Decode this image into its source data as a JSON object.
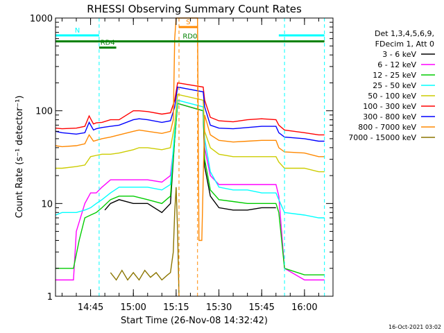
{
  "chart_data": {
    "type": "line",
    "title": "RHESSI Observing Summary Count Rates",
    "xlabel": "Start Time (26-Nov-08 14:32:42)",
    "ylabel": "Count Rate (s⁻¹ detector⁻¹)",
    "y_scale": "log",
    "ylim": [
      1,
      1000
    ],
    "y_ticks": [
      "1",
      "10",
      "100",
      "1000"
    ],
    "xlim": [
      "14:32:42",
      "16:10:00"
    ],
    "x_ticks": [
      "14:45",
      "15:00",
      "15:15",
      "15:30",
      "15:45",
      "16:00"
    ],
    "timestamp": "16-Oct-2021 03:02",
    "legend_header": [
      "Det 1,3,4,5,6,9,",
      "FDecim 1, Att 0"
    ],
    "series": [
      {
        "name": "3 - 6 keV",
        "color": "#000000",
        "points": [
          [
            "14:50:00",
            8.5
          ],
          [
            "14:52:00",
            10
          ],
          [
            "14:55:00",
            11
          ],
          [
            "15:00:00",
            10
          ],
          [
            "15:05:00",
            10
          ],
          [
            "15:10:00",
            8
          ],
          [
            "15:13:00",
            10
          ],
          [
            "15:14:30",
            50
          ],
          [
            "15:15:30",
            120
          ],
          [
            "15:24:30",
            100
          ],
          [
            "15:25:00",
            25
          ],
          [
            "15:27:00",
            12
          ],
          [
            "15:30:00",
            9
          ],
          [
            "15:35:00",
            8.5
          ],
          [
            "15:40:00",
            8.5
          ],
          [
            "15:45:00",
            9
          ],
          [
            "15:50:00",
            9
          ]
        ]
      },
      {
        "name": "6 - 12 keV",
        "color": "#ff00ff",
        "points": [
          [
            "14:32:42",
            1.5
          ],
          [
            "14:35:00",
            1.5
          ],
          [
            "14:39:00",
            1.5
          ],
          [
            "14:40:00",
            5
          ],
          [
            "14:43:00",
            10
          ],
          [
            "14:45:00",
            13
          ],
          [
            "14:47:00",
            13
          ],
          [
            "14:49:00",
            15
          ],
          [
            "14:52:00",
            18
          ],
          [
            "14:55:00",
            18
          ],
          [
            "15:00:00",
            18
          ],
          [
            "15:05:00",
            18
          ],
          [
            "15:10:00",
            17
          ],
          [
            "15:13:00",
            20
          ],
          [
            "15:14:30",
            50
          ],
          [
            "15:15:30",
            120
          ],
          [
            "15:24:30",
            100
          ],
          [
            "15:25:00",
            40
          ],
          [
            "15:27:00",
            20
          ],
          [
            "15:30:00",
            16
          ],
          [
            "15:35:00",
            16
          ],
          [
            "15:40:00",
            16
          ],
          [
            "15:45:00",
            16
          ],
          [
            "15:50:00",
            16
          ],
          [
            "15:51:00",
            12
          ],
          [
            "15:53:00",
            2
          ],
          [
            "16:00:00",
            1.5
          ],
          [
            "16:05:00",
            1.5
          ],
          [
            "16:07:00",
            1.5
          ]
        ]
      },
      {
        "name": "12 - 25 keV",
        "color": "#00cc00",
        "points": [
          [
            "14:32:42",
            2
          ],
          [
            "14:36:00",
            2
          ],
          [
            "14:39:00",
            2
          ],
          [
            "14:41:00",
            4
          ],
          [
            "14:43:00",
            7
          ],
          [
            "14:45:00",
            7.5
          ],
          [
            "14:47:00",
            8
          ],
          [
            "14:49:00",
            9
          ],
          [
            "14:52:00",
            11
          ],
          [
            "14:55:00",
            12
          ],
          [
            "15:00:00",
            12
          ],
          [
            "15:05:00",
            11
          ],
          [
            "15:10:00",
            10
          ],
          [
            "15:13:00",
            12
          ],
          [
            "15:14:30",
            50
          ],
          [
            "15:15:30",
            120
          ],
          [
            "15:24:30",
            100
          ],
          [
            "15:25:00",
            30
          ],
          [
            "15:27:00",
            14
          ],
          [
            "15:30:00",
            11
          ],
          [
            "15:35:00",
            10.5
          ],
          [
            "15:40:00",
            10
          ],
          [
            "15:45:00",
            10
          ],
          [
            "15:50:00",
            10
          ],
          [
            "15:51:00",
            8
          ],
          [
            "15:53:00",
            2
          ],
          [
            "16:00:00",
            1.7
          ],
          [
            "16:05:00",
            1.7
          ],
          [
            "16:07:00",
            1.7
          ]
        ]
      },
      {
        "name": "25 - 50 keV",
        "color": "#00ffff",
        "points": [
          [
            "14:32:42",
            7.5
          ],
          [
            "14:35:00",
            8
          ],
          [
            "14:40:00",
            8
          ],
          [
            "14:43:00",
            8.5
          ],
          [
            "14:45:00",
            9
          ],
          [
            "14:47:00",
            10
          ],
          [
            "14:49:00",
            11
          ],
          [
            "14:52:00",
            13
          ],
          [
            "14:55:00",
            15
          ],
          [
            "15:00:00",
            15
          ],
          [
            "15:05:00",
            15
          ],
          [
            "15:10:00",
            14
          ],
          [
            "15:13:00",
            16
          ],
          [
            "15:14:30",
            60
          ],
          [
            "15:15:30",
            130
          ],
          [
            "15:24:30",
            110
          ],
          [
            "15:25:00",
            50
          ],
          [
            "15:27:00",
            22
          ],
          [
            "15:30:00",
            15
          ],
          [
            "15:35:00",
            14
          ],
          [
            "15:40:00",
            14
          ],
          [
            "15:45:00",
            13
          ],
          [
            "15:50:00",
            13
          ],
          [
            "15:51:00",
            11
          ],
          [
            "15:53:00",
            8
          ],
          [
            "16:00:00",
            7.5
          ],
          [
            "16:05:00",
            7
          ],
          [
            "16:07:00",
            7
          ]
        ]
      },
      {
        "name": "50 - 100 keV",
        "color": "#cccc00",
        "points": [
          [
            "14:32:42",
            24
          ],
          [
            "14:35:00",
            24
          ],
          [
            "14:40:00",
            25
          ],
          [
            "14:43:00",
            26
          ],
          [
            "14:45:00",
            32
          ],
          [
            "14:47:00",
            33
          ],
          [
            "14:49:00",
            34
          ],
          [
            "14:52:00",
            34
          ],
          [
            "14:55:00",
            35
          ],
          [
            "15:00:00",
            38
          ],
          [
            "15:02:00",
            40
          ],
          [
            "15:05:00",
            40
          ],
          [
            "15:10:00",
            38
          ],
          [
            "15:13:00",
            40
          ],
          [
            "15:14:30",
            70
          ],
          [
            "15:15:30",
            150
          ],
          [
            "15:24:30",
            130
          ],
          [
            "15:25:00",
            60
          ],
          [
            "15:27:00",
            40
          ],
          [
            "15:30:00",
            34
          ],
          [
            "15:35:00",
            32
          ],
          [
            "15:40:00",
            32
          ],
          [
            "15:45:00",
            32
          ],
          [
            "15:50:00",
            32
          ],
          [
            "15:51:00",
            28
          ],
          [
            "15:53:00",
            24
          ],
          [
            "16:00:00",
            24
          ],
          [
            "16:05:00",
            22
          ],
          [
            "16:07:00",
            22
          ]
        ]
      },
      {
        "name": "100 - 300 keV",
        "color": "#ff0000",
        "points": [
          [
            "14:32:42",
            65
          ],
          [
            "14:35:00",
            64
          ],
          [
            "14:40:00",
            65
          ],
          [
            "14:43:00",
            68
          ],
          [
            "14:44:30",
            88
          ],
          [
            "14:46:00",
            72
          ],
          [
            "14:47:00",
            74
          ],
          [
            "14:49:00",
            75
          ],
          [
            "14:52:00",
            80
          ],
          [
            "14:55:00",
            80
          ],
          [
            "15:00:00",
            100
          ],
          [
            "15:02:00",
            100
          ],
          [
            "15:05:00",
            98
          ],
          [
            "15:10:00",
            92
          ],
          [
            "15:13:00",
            95
          ],
          [
            "15:14:30",
            130
          ],
          [
            "15:15:30",
            200
          ],
          [
            "15:24:30",
            180
          ],
          [
            "15:25:00",
            130
          ],
          [
            "15:27:00",
            85
          ],
          [
            "15:30:00",
            78
          ],
          [
            "15:35:00",
            76
          ],
          [
            "15:40:00",
            80
          ],
          [
            "15:45:00",
            82
          ],
          [
            "15:50:00",
            80
          ],
          [
            "15:51:00",
            70
          ],
          [
            "15:53:00",
            62
          ],
          [
            "16:00:00",
            58
          ],
          [
            "16:05:00",
            55
          ],
          [
            "16:07:00",
            55
          ]
        ]
      },
      {
        "name": "300 - 800 keV",
        "color": "#0000ff",
        "points": [
          [
            "14:32:42",
            60
          ],
          [
            "14:35:00",
            58
          ],
          [
            "14:40:00",
            56
          ],
          [
            "14:43:00",
            58
          ],
          [
            "14:44:30",
            75
          ],
          [
            "14:46:00",
            62
          ],
          [
            "14:47:00",
            64
          ],
          [
            "14:49:00",
            66
          ],
          [
            "14:52:00",
            68
          ],
          [
            "14:55:00",
            70
          ],
          [
            "15:00:00",
            80
          ],
          [
            "15:02:00",
            82
          ],
          [
            "15:05:00",
            80
          ],
          [
            "15:10:00",
            75
          ],
          [
            "15:13:00",
            78
          ],
          [
            "15:14:30",
            110
          ],
          [
            "15:15:30",
            180
          ],
          [
            "15:24:30",
            160
          ],
          [
            "15:25:00",
            110
          ],
          [
            "15:27:00",
            70
          ],
          [
            "15:30:00",
            65
          ],
          [
            "15:35:00",
            64
          ],
          [
            "15:40:00",
            66
          ],
          [
            "15:45:00",
            68
          ],
          [
            "15:50:00",
            68
          ],
          [
            "15:51:00",
            58
          ],
          [
            "15:53:00",
            52
          ],
          [
            "16:00:00",
            50
          ],
          [
            "16:05:00",
            47
          ],
          [
            "16:07:00",
            47
          ]
        ]
      },
      {
        "name": "800 - 7000 keV",
        "color": "#ff8800",
        "points": [
          [
            "14:32:42",
            42
          ],
          [
            "14:35:00",
            41
          ],
          [
            "14:40:00",
            42
          ],
          [
            "14:43:00",
            44
          ],
          [
            "14:44:30",
            55
          ],
          [
            "14:46:00",
            47
          ],
          [
            "14:47:00",
            48
          ],
          [
            "14:49:00",
            50
          ],
          [
            "14:52:00",
            52
          ],
          [
            "14:55:00",
            55
          ],
          [
            "15:00:00",
            60
          ],
          [
            "15:02:00",
            62
          ],
          [
            "15:05:00",
            60
          ],
          [
            "15:10:00",
            57
          ],
          [
            "15:13:00",
            60
          ],
          [
            "15:14:00",
            80
          ],
          [
            "15:14:30",
            600
          ],
          [
            "15:15:00",
            1000
          ],
          [
            "15:17:00",
            1000
          ],
          [
            "15:21:00",
            1000
          ],
          [
            "15:22:30",
            1000
          ],
          [
            "15:23:00",
            4
          ],
          [
            "15:24:00",
            4
          ],
          [
            "15:25:00",
            90
          ],
          [
            "15:27:00",
            55
          ],
          [
            "15:30:00",
            48
          ],
          [
            "15:35:00",
            46
          ],
          [
            "15:40:00",
            47
          ],
          [
            "15:45:00",
            48
          ],
          [
            "15:50:00",
            48
          ],
          [
            "15:51:00",
            40
          ],
          [
            "15:53:00",
            36
          ],
          [
            "16:00:00",
            35
          ],
          [
            "16:05:00",
            32
          ],
          [
            "16:07:00",
            32
          ]
        ]
      },
      {
        "name": "7000 - 15000 keV",
        "color": "#8b7500",
        "points": [
          [
            "14:52:00",
            1.8
          ],
          [
            "14:54:00",
            1.5
          ],
          [
            "14:56:00",
            1.9
          ],
          [
            "14:58:00",
            1.5
          ],
          [
            "15:00:00",
            1.8
          ],
          [
            "15:02:00",
            1.5
          ],
          [
            "15:04:00",
            1.9
          ],
          [
            "15:06:00",
            1.6
          ],
          [
            "15:08:00",
            1.8
          ],
          [
            "15:10:00",
            1.5
          ],
          [
            "15:12:00",
            1.7
          ],
          [
            "15:13:00",
            1.8
          ],
          [
            "15:14:00",
            3
          ],
          [
            "15:14:30",
            8
          ],
          [
            "15:15:00",
            15
          ],
          [
            "15:15:30",
            5
          ],
          [
            "15:16:00",
            1
          ]
        ]
      }
    ],
    "spans": [
      {
        "label": "N",
        "color": "#00ffff",
        "level": 650,
        "from": "14:32:42",
        "to": "14:48:00",
        "dashed_lines": [
          "14:48:00"
        ]
      },
      {
        "label": "",
        "color": "#00ffff",
        "level": 650,
        "from": "15:51:00",
        "to": "16:07:00",
        "dashed_lines": [
          "15:53:00",
          "16:07:00"
        ]
      },
      {
        "label": "RD0",
        "color": "#008000",
        "level": 560,
        "from": "14:32:42",
        "to": "16:07:00",
        "dashed_lines": []
      },
      {
        "label": "RD4",
        "color": "#008000",
        "level": 480,
        "from": "14:48:00",
        "to": "14:54:00",
        "dashed_lines": []
      },
      {
        "label": "S",
        "color": "#ff8800",
        "level": 800,
        "from": "15:16:00",
        "to": "15:22:30",
        "dashed_lines": [
          "15:16:00",
          "15:22:30"
        ]
      }
    ]
  }
}
